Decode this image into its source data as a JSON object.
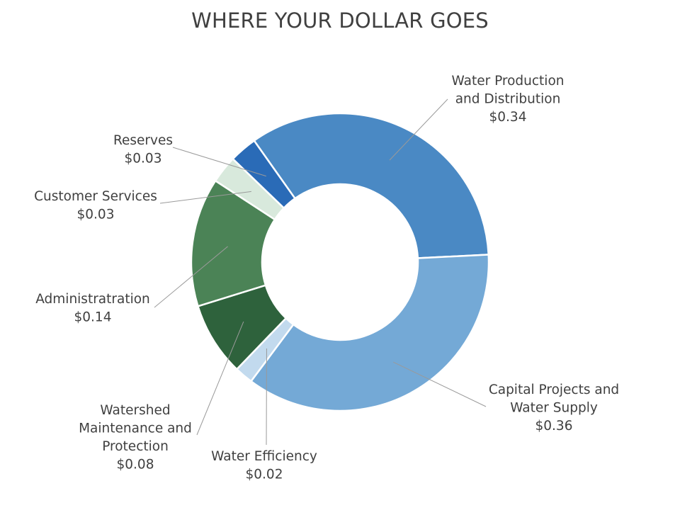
{
  "chart_data": {
    "type": "pie",
    "subtype": "donut",
    "title": "WHERE YOUR DOLLAR GOES",
    "slices": [
      {
        "label": [
          "Water Production",
          "and Distribution"
        ],
        "value_label": "$0.34",
        "value": 0.34,
        "color": "#4a89c4"
      },
      {
        "label": [
          "Capital Projects and",
          "Water Supply"
        ],
        "value_label": "$0.36",
        "value": 0.36,
        "color": "#74a9d6"
      },
      {
        "label": [
          "Water Efficiency"
        ],
        "value_label": "$0.02",
        "value": 0.02,
        "color": "#c2daee"
      },
      {
        "label": [
          "Watershed",
          "Maintenance and",
          "Protection"
        ],
        "value_label": "$0.08",
        "value": 0.08,
        "color": "#2e623c"
      },
      {
        "label": [
          "Administratration"
        ],
        "value_label": "$0.14",
        "value": 0.14,
        "color": "#4b8356"
      },
      {
        "label": [
          "Customer Services"
        ],
        "value_label": "$0.03",
        "value": 0.03,
        "color": "#d8e9dc"
      },
      {
        "label": [
          "Reserves"
        ],
        "value_label": "$0.03",
        "value": 0.03,
        "color": "#2a6bb7"
      }
    ],
    "legend": "none",
    "data_labels": "outside with leader lines"
  }
}
